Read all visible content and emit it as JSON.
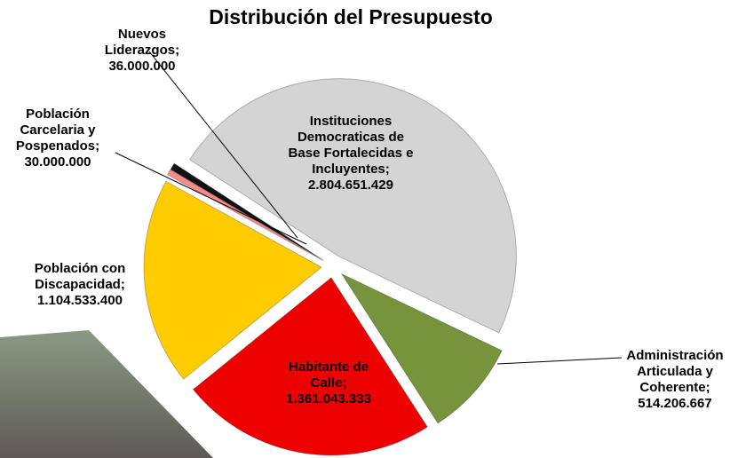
{
  "chart_data": {
    "type": "pie",
    "title": "Distribución del Presupuesto",
    "categories": [
      "Instituciones Democraticas de Base Fortalecidas e Incluyentes;",
      "Administración Articulada y Coherente;",
      "Habitante de Calle;",
      "Población con Discapacidad;",
      "Población Carcelaria y Pospenados;",
      "Nuevos Liderazgos;"
    ],
    "values": [
      2804651429,
      514206667,
      1361043333,
      1104533400,
      30000000,
      36000000
    ],
    "value_labels": [
      "2.804.651.429",
      "514.206.667",
      "1.361.043.333",
      "1.104.533.400",
      "30.000.000",
      "36.000.000"
    ],
    "colors": [
      "#d4d4d4",
      "#77933c",
      "#ee0000",
      "#ffcc00",
      "#ff8a8a",
      "#111111"
    ]
  }
}
